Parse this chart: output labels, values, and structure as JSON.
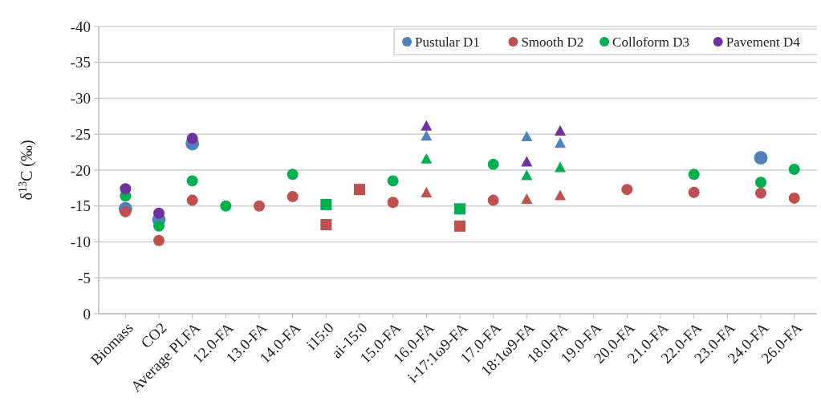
{
  "chart_data": {
    "type": "scatter",
    "ylabel": "δ$^{13}$C (‰)",
    "categories": [
      "Biomass",
      "CO2",
      "Average PLFA",
      "12.0-FA",
      "13.0-FA",
      "14.0-FA",
      "i15:0",
      "ai-15:0",
      "15.0-FA",
      "16.0-FA",
      "i-17:1ω9-FA",
      "17.0-FA",
      "18:1ω9-FA",
      "18.0-FA",
      "19.0-FA",
      "20.0-FA",
      "21.0-FA",
      "22.0-FA",
      "23.0-FA",
      "24.0-FA",
      "26.0-FA"
    ],
    "ylim": [
      0,
      -40
    ],
    "yticks": [
      0,
      -5,
      -10,
      -15,
      -20,
      -25,
      -30,
      -35,
      -40
    ],
    "grid": "y",
    "legend": "top right",
    "series": [
      {
        "name": "Pustular D1",
        "color": "#4f81bd",
        "marker": "circle",
        "values": [
          -14.6,
          -13.1,
          -23.7,
          null,
          null,
          null,
          null,
          null,
          null,
          null,
          null,
          null,
          null,
          null,
          null,
          null,
          null,
          null,
          null,
          -21.7,
          null
        ]
      },
      {
        "name": "Smooth D2",
        "color": "#c0504d",
        "marker": "circle",
        "values": [
          -14.2,
          -10.2,
          -15.8,
          null,
          -15.0,
          -16.3,
          null,
          null,
          -15.5,
          null,
          null,
          -15.8,
          null,
          null,
          null,
          -17.3,
          null,
          -16.9,
          null,
          -16.8,
          -16.1
        ]
      },
      {
        "name": "Colloform D3",
        "color": "#00b050",
        "marker": "circle",
        "values": [
          -16.4,
          -12.2,
          -18.5,
          -15.0,
          null,
          -19.4,
          null,
          null,
          -18.5,
          null,
          null,
          -20.8,
          null,
          null,
          null,
          null,
          null,
          -19.4,
          null,
          -18.3,
          -20.1
        ]
      },
      {
        "name": "Pavement D4",
        "color": "#7030a0",
        "marker": "circle",
        "values": [
          -17.4,
          -14.0,
          -24.4,
          null,
          null,
          null,
          null,
          null,
          null,
          null,
          null,
          null,
          null,
          null,
          null,
          null,
          null,
          null,
          null,
          null,
          null
        ]
      },
      {
        "color": "#00b050",
        "marker": "square",
        "values": [
          null,
          null,
          null,
          null,
          null,
          null,
          -15.2,
          null,
          null,
          null,
          -14.6,
          null,
          null,
          null,
          null,
          null,
          null,
          null,
          null,
          null,
          null
        ]
      },
      {
        "color": "#c0504d",
        "marker": "square",
        "values": [
          null,
          null,
          null,
          null,
          null,
          null,
          -12.4,
          -17.3,
          null,
          null,
          -12.2,
          null,
          null,
          null,
          null,
          null,
          null,
          null,
          null,
          null,
          null
        ]
      },
      {
        "color": "#c0504d",
        "marker": "triangle",
        "values": [
          null,
          null,
          null,
          null,
          null,
          null,
          null,
          null,
          null,
          -16.8,
          null,
          null,
          -15.9,
          -16.4,
          null,
          null,
          null,
          null,
          null,
          null,
          null
        ]
      },
      {
        "color": "#00b050",
        "marker": "triangle",
        "values": [
          null,
          null,
          null,
          null,
          null,
          null,
          null,
          null,
          null,
          -21.5,
          null,
          null,
          -19.2,
          -20.3,
          null,
          null,
          null,
          null,
          null,
          null,
          null
        ]
      },
      {
        "color": "#4f81bd",
        "marker": "triangle",
        "values": [
          null,
          null,
          null,
          null,
          null,
          null,
          null,
          null,
          null,
          -24.7,
          null,
          null,
          -24.6,
          -23.7,
          null,
          null,
          null,
          null,
          null,
          null,
          null
        ]
      },
      {
        "color": "#7030a0",
        "marker": "triangle",
        "values": [
          null,
          null,
          null,
          null,
          null,
          null,
          null,
          null,
          null,
          -26.1,
          null,
          null,
          -21.1,
          -25.4,
          null,
          null,
          null,
          null,
          null,
          null,
          null
        ]
      }
    ]
  }
}
